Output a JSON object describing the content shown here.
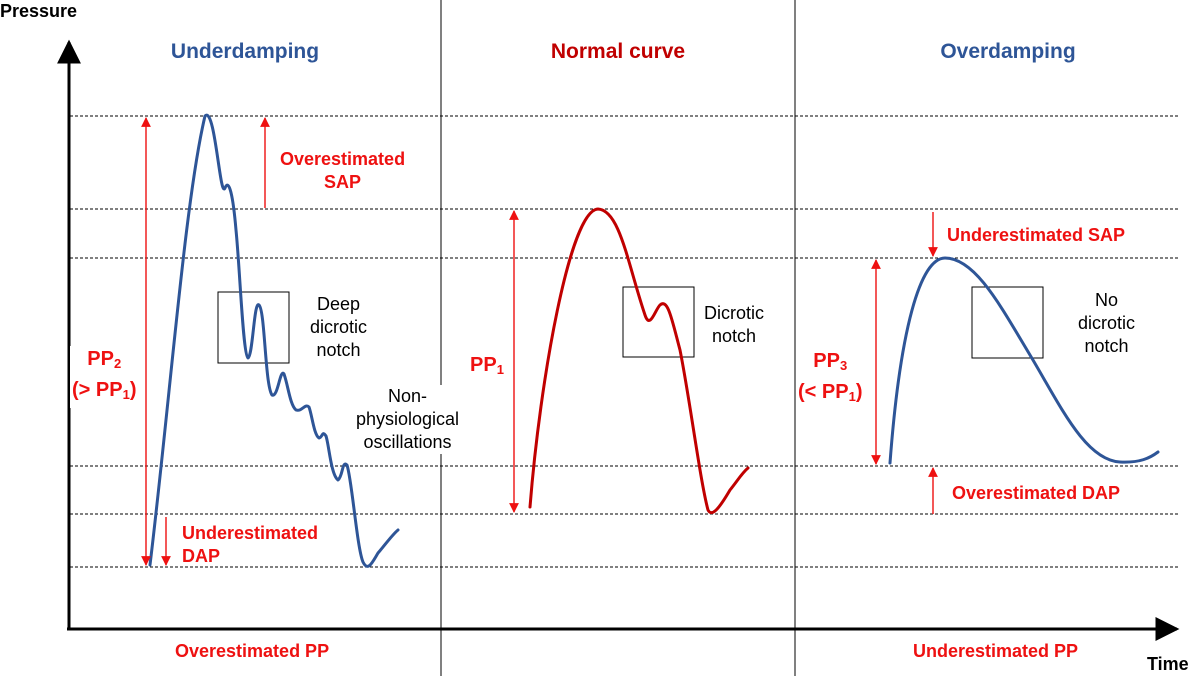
{
  "axes": {
    "y_label": "Pressure",
    "x_label": "Time"
  },
  "panels": [
    {
      "title": "Underdamping",
      "curve_color": "#2e5597",
      "notch_label": [
        "Deep",
        "dicrotic",
        "notch"
      ],
      "oscillation_label": [
        "Non-",
        "physiological",
        "oscillations"
      ],
      "sap_label": [
        "Overestimated",
        "SAP"
      ],
      "dap_label": [
        "Underestimated",
        "DAP"
      ],
      "pp_label": {
        "main": "PP",
        "sub": "2",
        "line2_pre": "(> PP",
        "line2_sub": "1",
        "line2_post": ")"
      },
      "footer": "Overestimated PP"
    },
    {
      "title": "Normal curve",
      "curve_color": "#c00000",
      "notch_label": [
        "Dicrotic",
        "notch"
      ],
      "pp_label": {
        "main": "PP",
        "sub": "1"
      }
    },
    {
      "title": "Overdamping",
      "curve_color": "#2e5597",
      "notch_label": [
        "No",
        "dicrotic",
        "notch"
      ],
      "sap_label": "Underestimated SAP",
      "dap_label": "Overestimated DAP",
      "pp_label": {
        "main": "PP",
        "sub": "3",
        "line2_pre": "(< PP",
        "line2_sub": "1",
        "line2_post": ")"
      },
      "footer": "Underestimated PP"
    }
  ],
  "colors": {
    "annotation_red": "#ee1111",
    "axis": "#000000",
    "guide_line": "#000000"
  }
}
